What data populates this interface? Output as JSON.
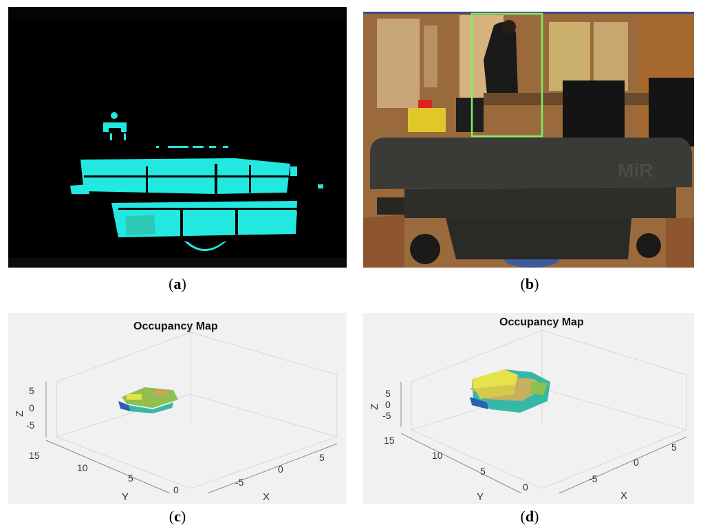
{
  "captions": {
    "a": "(a)",
    "b": "(b)",
    "c": "(c)",
    "d": "(d)"
  },
  "caption_letters": {
    "a": "a",
    "b": "b",
    "c": "c",
    "d": "d"
  },
  "panel_b": {
    "robot_logo": "MiR"
  },
  "occupancy_maps": [
    {
      "title": "Occupancy Map",
      "z_ticks": [
        "5",
        "0",
        "-5"
      ],
      "y_ticks": [
        "15",
        "10",
        "5",
        "0"
      ],
      "x_ticks": [
        "5",
        "0",
        "-5"
      ],
      "xlabel": "X",
      "ylabel": "Y",
      "zlabel": "Z"
    },
    {
      "title": "Occupancy Map",
      "z_ticks": [
        "5",
        "0",
        "-5"
      ],
      "y_ticks": [
        "15",
        "10",
        "5",
        "0"
      ],
      "x_ticks": [
        "5",
        "0",
        "-5"
      ],
      "xlabel": "X",
      "ylabel": "Y",
      "zlabel": "Z"
    }
  ],
  "colors": {
    "depth_cyan": "#22e8e0",
    "bbox_green": "#7cf06a",
    "voxel_yellow": "#e6e24a",
    "voxel_green": "#8fbf4f",
    "voxel_blue": "#2d5fb0",
    "voxel_teal": "#36b8a8"
  }
}
